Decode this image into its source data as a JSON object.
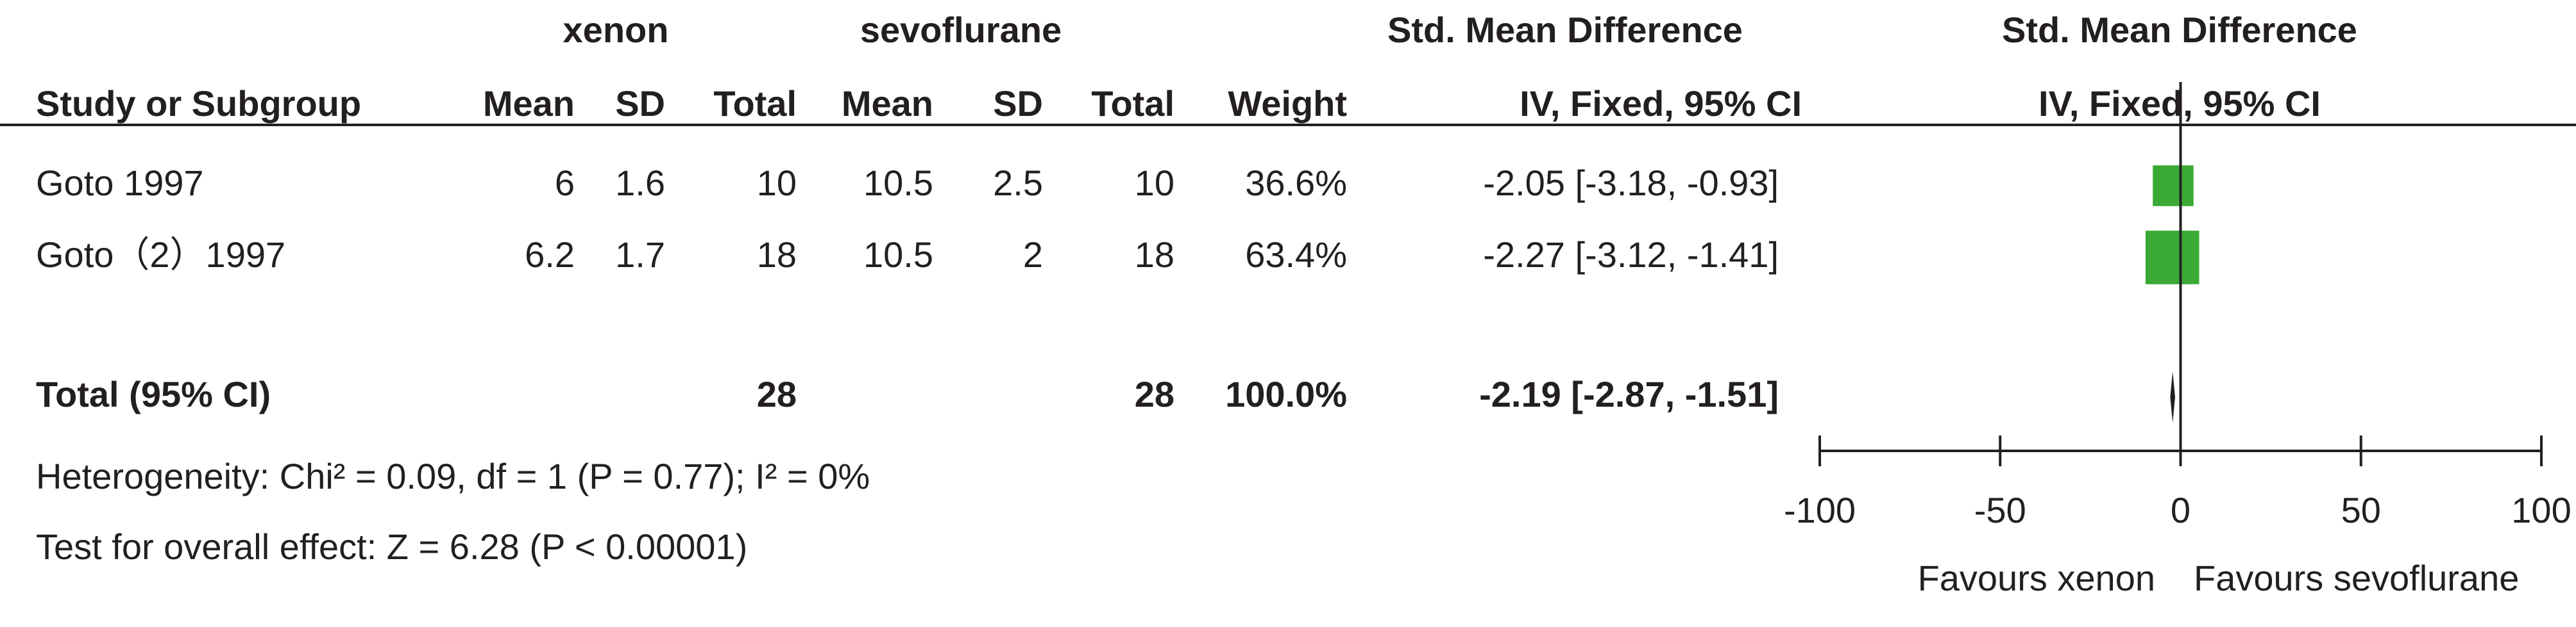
{
  "chart_data": {
    "type": "forest",
    "group_headers": [
      "xenon",
      "sevoflurane",
      "Std. Mean Difference",
      "Std. Mean Difference"
    ],
    "column_headers": [
      "Study or Subgroup",
      "Mean",
      "SD",
      "Total",
      "Mean",
      "SD",
      "Total",
      "Weight",
      "IV, Fixed, 95% CI",
      "IV, Fixed, 95% CI"
    ],
    "rows": [
      {
        "study": "Goto 1997",
        "xenon_mean": 6,
        "xenon_sd": 1.6,
        "xenon_total": 10,
        "sevo_mean": 10.5,
        "sevo_sd": 2.5,
        "sevo_total": 10,
        "weight": 36.6,
        "weight_label": "36.6%",
        "smd": -2.05,
        "ci_low": -3.18,
        "ci_high": -0.93,
        "estimate_label": "-2.05 [-3.18, -0.93]"
      },
      {
        "study": "Goto（2）1997",
        "xenon_mean": 6.2,
        "xenon_sd": 1.7,
        "xenon_total": 18,
        "sevo_mean": 10.5,
        "sevo_sd": 2,
        "sevo_total": 18,
        "weight": 63.4,
        "weight_label": "63.4%",
        "smd": -2.27,
        "ci_low": -3.12,
        "ci_high": -1.41,
        "estimate_label": "-2.27 [-3.12, -1.41]"
      }
    ],
    "total": {
      "study": "Total (95% CI)",
      "xenon_total": 28,
      "sevo_total": 28,
      "weight_label": "100.0%",
      "smd": -2.19,
      "ci_low": -2.87,
      "ci_high": -1.51,
      "estimate_label": "-2.19 [-2.87, -1.51]"
    },
    "heterogeneity": "Heterogeneity: Chi² = 0.09, df = 1 (P = 0.77); I² = 0%",
    "overall_effect": "Test for overall effect: Z = 6.28 (P < 0.00001)",
    "xlim": [
      -100,
      100
    ],
    "xticks": [
      -100,
      -50,
      0,
      50,
      100
    ],
    "favours_left": "Favours xenon",
    "favours_right": "Favours sevoflurane",
    "color": "#3aaa35"
  }
}
